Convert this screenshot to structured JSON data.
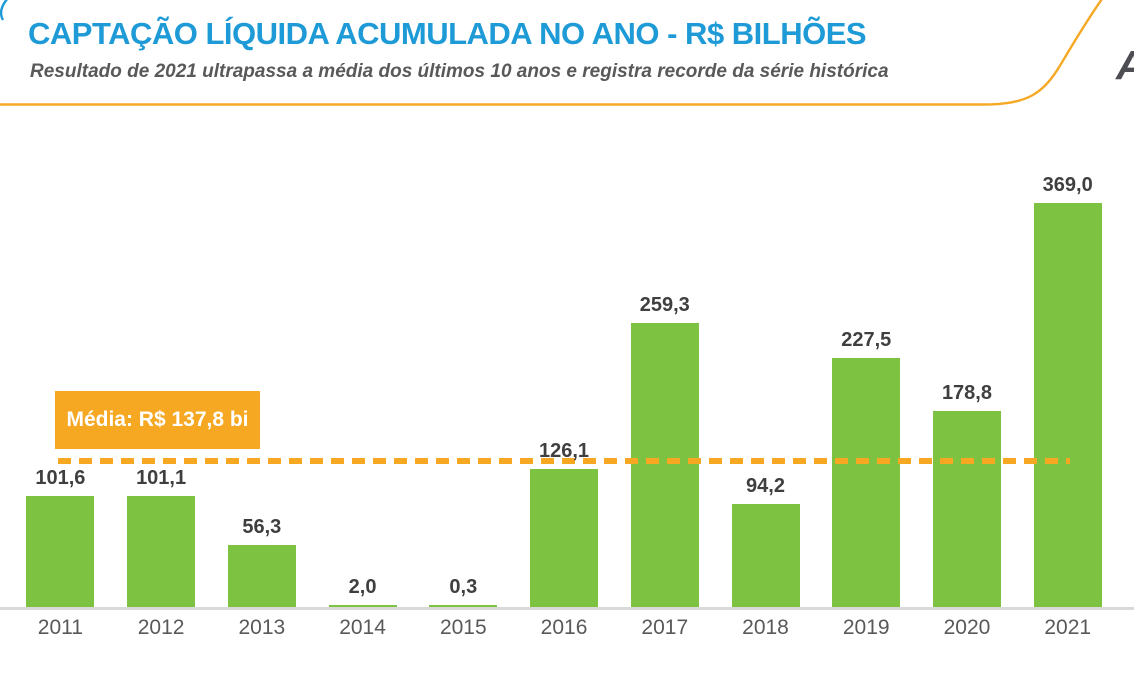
{
  "header": {
    "title": "CAPTAÇÃO LÍQUIDA ACUMULADA NO ANO - R$ BILHÕES",
    "subtitle": "Resultado de 2021 ultrapassa a média dos últimos 10 anos e registra recorde da série histórica",
    "logo_fragment": "A"
  },
  "colors": {
    "title_blue": "#1E9BD7",
    "bar_green": "#7EC242",
    "accent_orange": "#F7A823",
    "value_label_gray": "#3F3F3F",
    "axis_label_gray": "#595959",
    "baseline_gray": "#D9D9D9",
    "logo_gray": "#4D4E53"
  },
  "chart_data": {
    "type": "bar",
    "title": "CAPTAÇÃO LÍQUIDA ACUMULADA NO ANO - R$ BILHÕES",
    "subtitle": "Resultado de 2021 ultrapassa a média dos últimos 10 anos e registra recorde da série histórica",
    "categories": [
      "2011",
      "2012",
      "2013",
      "2014",
      "2015",
      "2016",
      "2017",
      "2018",
      "2019",
      "2020",
      "2021"
    ],
    "values": [
      101.6,
      101.1,
      56.3,
      2.0,
      0.3,
      126.1,
      259.3,
      94.2,
      227.5,
      178.8,
      369.0
    ],
    "value_labels": [
      "101,6",
      "101,1",
      "56,3",
      "2,0",
      "0,3",
      "126,1",
      "259,3",
      "94,2",
      "227,5",
      "178,8",
      "369,0"
    ],
    "average_line": {
      "value": 137.8,
      "label": "Média: R$ 137,8 bi",
      "style": "dashed",
      "color": "#F7A823"
    },
    "xlabel": "",
    "ylabel": "",
    "ylim": [
      0,
      436
    ],
    "grid": false,
    "legend": false,
    "bar_color": "#7EC242"
  }
}
